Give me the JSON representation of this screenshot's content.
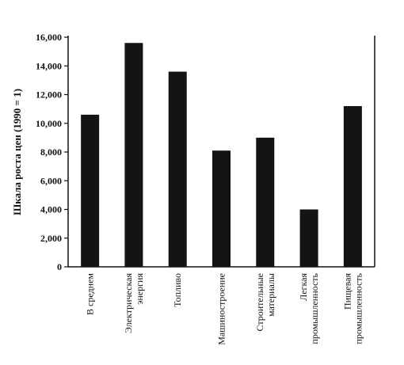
{
  "chart_data": {
    "type": "bar",
    "ylabel": "Шкала роста цен (1990 = 1)",
    "ylim": [
      0,
      16000
    ],
    "yticks": [
      0,
      2000,
      4000,
      6000,
      8000,
      10000,
      12000,
      14000,
      16000
    ],
    "ytick_labels": [
      "0",
      "2,000",
      "4,000",
      "6,000",
      "8,000",
      "10,000",
      "12,000",
      "14,000",
      "16,000"
    ],
    "categories": [
      [
        "В  среднем"
      ],
      [
        "Электрическая",
        "энергия"
      ],
      [
        "Топливо"
      ],
      [
        "Машиностроение"
      ],
      [
        "Строительные",
        "материалы"
      ],
      [
        "Легкая",
        "промышленность"
      ],
      [
        "Пищевая",
        "промышленность"
      ]
    ],
    "values": [
      10600,
      15600,
      13600,
      8100,
      9000,
      4000,
      11200
    ],
    "bar_color": "#141414",
    "grid": false
  }
}
